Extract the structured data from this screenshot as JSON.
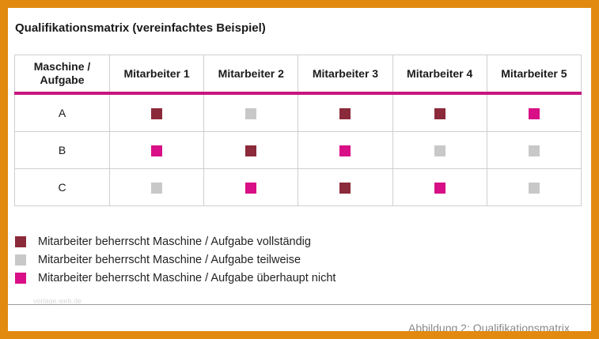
{
  "title": "Qualifikationsmatrix (vereinfachtes Beispiel)",
  "colors": {
    "full": "#8b2a3a",
    "partial": "#c8c8c8",
    "none": "#d80f86",
    "accent_line": "#c8157f",
    "frame": "#e28a0f"
  },
  "matrix": {
    "corner_header": "Maschine /\nAufgabe",
    "columns": [
      "Mitarbeiter 1",
      "Mitarbeiter 2",
      "Mitarbeiter 3",
      "Mitarbeiter 4",
      "Mitarbeiter 5"
    ],
    "rows": [
      {
        "label": "A",
        "cells": [
          "full",
          "partial",
          "full",
          "full",
          "none"
        ]
      },
      {
        "label": "B",
        "cells": [
          "none",
          "full",
          "none",
          "partial",
          "partial"
        ]
      },
      {
        "label": "C",
        "cells": [
          "partial",
          "none",
          "full",
          "none",
          "partial"
        ]
      }
    ]
  },
  "legend": [
    {
      "level": "full",
      "text": "Mitarbeiter beherrscht Maschine / Aufgabe vollständig"
    },
    {
      "level": "partial",
      "text": "Mitarbeiter beherrscht Maschine / Aufgabe teilweise"
    },
    {
      "level": "none",
      "text": "Mitarbeiter beherrscht Maschine / Aufgabe überhaupt nicht"
    }
  ],
  "watermark": "vorlage.web.de",
  "caption": "Abbildung 2: Qualifikationsmatrix"
}
